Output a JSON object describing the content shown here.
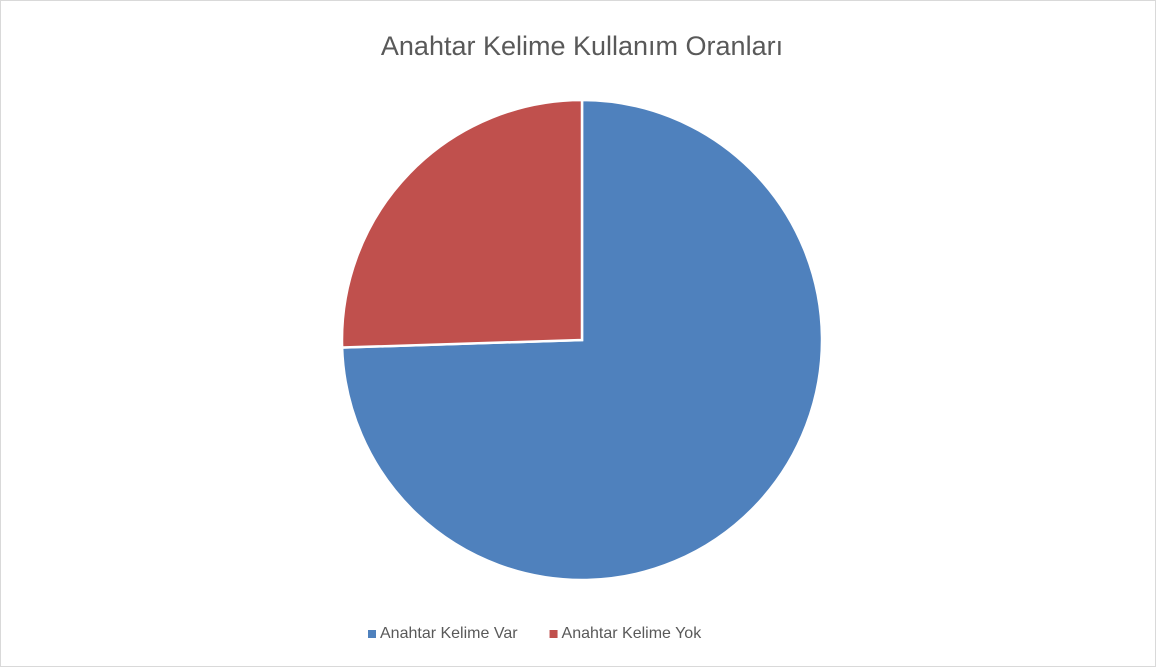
{
  "chart_data": {
    "type": "pie",
    "title": "Anahtar Kelime Kullanım Oranları",
    "categories": [
      "Anahtar Kelime Var",
      "Anahtar Kelime Yok"
    ],
    "values": [
      74.5,
      25.5
    ],
    "colors": [
      "#4f81bd",
      "#c0504d"
    ],
    "legend": "bottom"
  }
}
